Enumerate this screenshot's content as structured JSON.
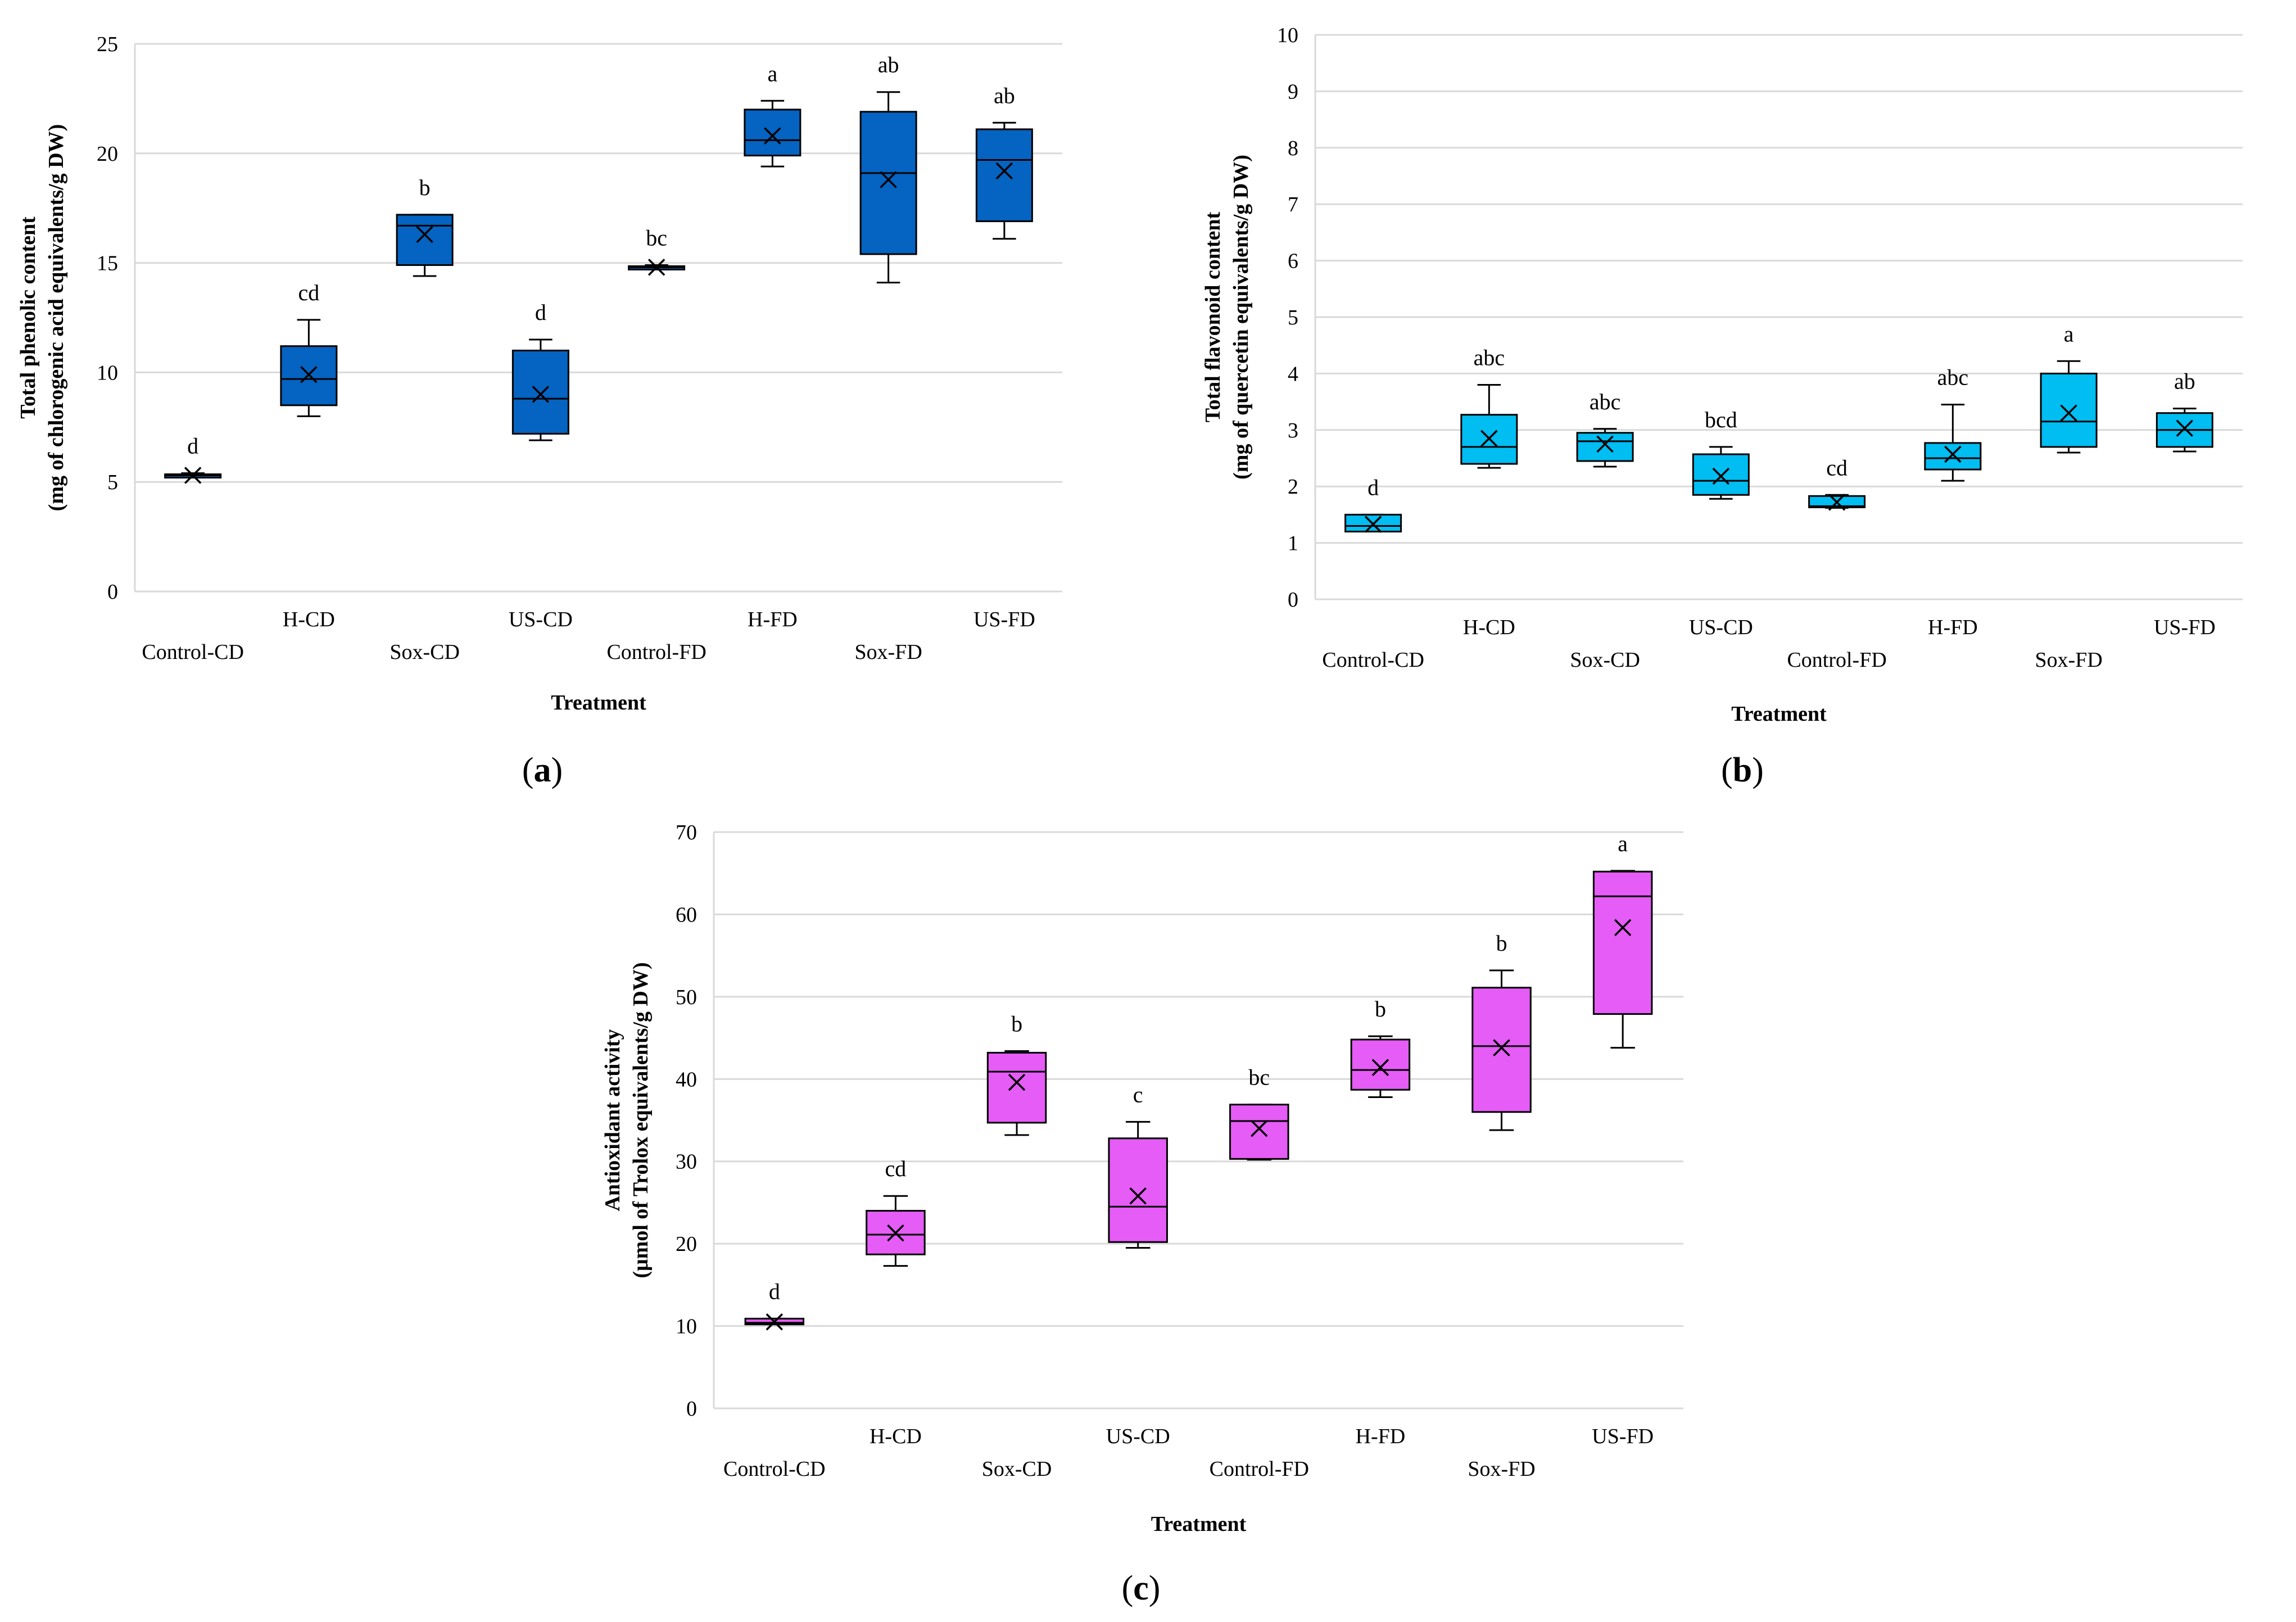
{
  "chart_data": [
    {
      "type": "box",
      "caption_letter": "a",
      "box_color": "#0563C1",
      "xlabel": "Treatment",
      "ylabel_line1": "Total phenolic content",
      "ylabel_line2": "(mg of chlorogenic acid equivalents/g DW)",
      "ylim": [
        0,
        25
      ],
      "yticks": [
        0,
        5,
        10,
        15,
        20,
        25
      ],
      "grid": true,
      "categories": [
        "Control-CD",
        "H-CD",
        "Sox-CD",
        "US-CD",
        "Control-FD",
        "H-FD",
        "Sox-FD",
        "US-FD"
      ],
      "boxes": [
        {
          "min": 5.2,
          "q1": 5.25,
          "median": 5.3,
          "q3": 5.35,
          "max": 5.4,
          "mean": 5.3,
          "letter": "d"
        },
        {
          "min": 8.0,
          "q1": 8.5,
          "median": 9.7,
          "q3": 11.2,
          "max": 12.4,
          "mean": 9.9,
          "letter": "cd"
        },
        {
          "min": 14.4,
          "q1": 14.9,
          "median": 16.7,
          "q3": 17.2,
          "max": 17.2,
          "mean": 16.3,
          "letter": "b"
        },
        {
          "min": 6.9,
          "q1": 7.2,
          "median": 8.8,
          "q3": 11.0,
          "max": 11.5,
          "mean": 9.0,
          "letter": "d"
        },
        {
          "min": 14.7,
          "q1": 14.75,
          "median": 14.8,
          "q3": 14.85,
          "max": 14.9,
          "mean": 14.8,
          "letter": "bc"
        },
        {
          "min": 19.4,
          "q1": 19.9,
          "median": 20.6,
          "q3": 22.0,
          "max": 22.4,
          "mean": 20.8,
          "letter": "a"
        },
        {
          "min": 14.1,
          "q1": 15.4,
          "median": 19.1,
          "q3": 21.9,
          "max": 22.8,
          "mean": 18.8,
          "letter": "ab"
        },
        {
          "min": 16.1,
          "q1": 16.9,
          "median": 19.7,
          "q3": 21.1,
          "max": 21.4,
          "mean": 19.2,
          "letter": "ab"
        }
      ]
    },
    {
      "type": "box",
      "caption_letter": "b",
      "box_color": "#00BDF2",
      "xlabel": "Treatment",
      "ylabel_line1": "Total flavonoid content",
      "ylabel_line2": "(mg of quercetin equivalents/g DW)",
      "ylim": [
        0,
        10
      ],
      "yticks": [
        0,
        1,
        2,
        3,
        4,
        5,
        6,
        7,
        8,
        9,
        10
      ],
      "grid": true,
      "categories": [
        "Control-CD",
        "H-CD",
        "Sox-CD",
        "US-CD",
        "Control-FD",
        "H-FD",
        "Sox-FD",
        "US-FD"
      ],
      "boxes": [
        {
          "min": 1.2,
          "q1": 1.2,
          "median": 1.3,
          "q3": 1.5,
          "max": 1.5,
          "mean": 1.33,
          "letter": "d"
        },
        {
          "min": 2.33,
          "q1": 2.4,
          "median": 2.7,
          "q3": 3.27,
          "max": 3.8,
          "mean": 2.85,
          "letter": "abc"
        },
        {
          "min": 2.35,
          "q1": 2.45,
          "median": 2.8,
          "q3": 2.95,
          "max": 3.02,
          "mean": 2.75,
          "letter": "abc"
        },
        {
          "min": 1.78,
          "q1": 1.85,
          "median": 2.1,
          "q3": 2.57,
          "max": 2.7,
          "mean": 2.18,
          "letter": "bcd"
        },
        {
          "min": 1.62,
          "q1": 1.63,
          "median": 1.65,
          "q3": 1.83,
          "max": 1.85,
          "mean": 1.72,
          "letter": "cd"
        },
        {
          "min": 2.1,
          "q1": 2.3,
          "median": 2.5,
          "q3": 2.77,
          "max": 3.45,
          "mean": 2.57,
          "letter": "abc"
        },
        {
          "min": 2.6,
          "q1": 2.7,
          "median": 3.15,
          "q3": 4.0,
          "max": 4.22,
          "mean": 3.3,
          "letter": "a"
        },
        {
          "min": 2.62,
          "q1": 2.7,
          "median": 3.0,
          "q3": 3.3,
          "max": 3.38,
          "mean": 3.03,
          "letter": "ab"
        }
      ]
    },
    {
      "type": "box",
      "caption_letter": "c",
      "box_color": "#E55CF6",
      "xlabel": "Treatment",
      "ylabel_line1": "Antioxidant activity",
      "ylabel_line2": "(μmol of Trolox equivalents/g DW)",
      "ylim": [
        0,
        70
      ],
      "yticks": [
        0,
        10,
        20,
        30,
        40,
        50,
        60,
        70
      ],
      "grid": true,
      "categories": [
        "Control-CD",
        "H-CD",
        "Sox-CD",
        "US-CD",
        "Control-FD",
        "H-FD",
        "Sox-FD",
        "US-FD"
      ],
      "boxes": [
        {
          "min": 10.2,
          "q1": 10.2,
          "median": 10.4,
          "q3": 10.9,
          "max": 10.9,
          "mean": 10.5,
          "letter": "d"
        },
        {
          "min": 17.3,
          "q1": 18.7,
          "median": 21.1,
          "q3": 24.0,
          "max": 25.8,
          "mean": 21.3,
          "letter": "cd"
        },
        {
          "min": 33.2,
          "q1": 34.7,
          "median": 40.9,
          "q3": 43.2,
          "max": 43.4,
          "mean": 39.6,
          "letter": "b"
        },
        {
          "min": 19.5,
          "q1": 20.2,
          "median": 24.5,
          "q3": 32.8,
          "max": 34.8,
          "mean": 25.8,
          "letter": "c"
        },
        {
          "min": 30.2,
          "q1": 30.3,
          "median": 34.9,
          "q3": 36.9,
          "max": 36.9,
          "mean": 34.0,
          "letter": "bc"
        },
        {
          "min": 37.8,
          "q1": 38.7,
          "median": 41.1,
          "q3": 44.8,
          "max": 45.2,
          "mean": 41.4,
          "letter": "b"
        },
        {
          "min": 33.8,
          "q1": 36.0,
          "median": 44.0,
          "q3": 51.1,
          "max": 53.2,
          "mean": 43.8,
          "letter": "b"
        },
        {
          "min": 43.8,
          "q1": 47.9,
          "median": 62.2,
          "q3": 65.2,
          "max": 65.3,
          "mean": 58.4,
          "letter": "a"
        }
      ]
    }
  ]
}
